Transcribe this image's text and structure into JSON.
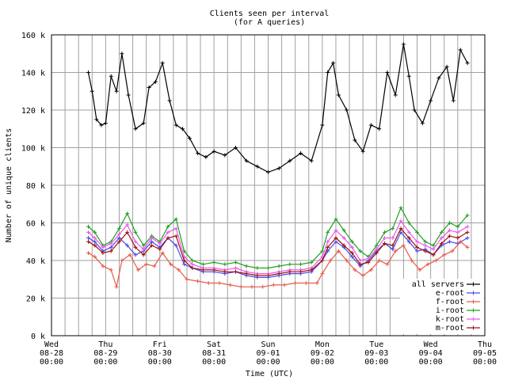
{
  "chart_data": {
    "type": "line",
    "title": "Clients seen per interval",
    "subtitle": "(for A queries)",
    "xlabel": "Time (UTC)",
    "ylabel": "Number of unique clients",
    "ylim": [
      0,
      160000
    ],
    "xlim": [
      "2024-08-28 00:00",
      "2024-09-05 00:00"
    ],
    "y_ticks": [
      "0 k",
      "20 k",
      "40 k",
      "60 k",
      "80 k",
      "100 k",
      "120 k",
      "140 k",
      "160 k"
    ],
    "x_ticks": [
      {
        "day": "Wed",
        "date": "08-28",
        "time": "00:00"
      },
      {
        "day": "Thu",
        "date": "08-29",
        "time": "00:00"
      },
      {
        "day": "Fri",
        "date": "08-30",
        "time": "00:00"
      },
      {
        "day": "Sat",
        "date": "08-31",
        "time": "00:00"
      },
      {
        "day": "Sun",
        "date": "09-01",
        "time": "00:00"
      },
      {
        "day": "Mon",
        "date": "09-02",
        "time": "00:00"
      },
      {
        "day": "Tue",
        "date": "09-03",
        "time": "00:00"
      },
      {
        "day": "Wed",
        "date": "09-04",
        "time": "00:00"
      },
      {
        "day": "Thu",
        "date": "09-05",
        "time": "00:00"
      }
    ],
    "grid": true,
    "legend_position": "bottom-right",
    "series": [
      {
        "name": "all servers",
        "color": "#000000",
        "x": [
          0.68,
          0.75,
          0.83,
          0.92,
          1.0,
          1.1,
          1.2,
          1.3,
          1.42,
          1.55,
          1.7,
          1.8,
          1.92,
          2.05,
          2.18,
          2.3,
          2.42,
          2.55,
          2.7,
          2.85,
          3.0,
          3.2,
          3.4,
          3.6,
          3.8,
          4.0,
          4.2,
          4.4,
          4.6,
          4.8,
          5.0,
          5.1,
          5.2,
          5.3,
          5.45,
          5.6,
          5.75,
          5.9,
          6.05,
          6.2,
          6.35,
          6.5,
          6.6,
          6.7,
          6.85,
          7.0,
          7.15,
          7.3,
          7.42,
          7.55,
          7.68
        ],
        "y": [
          140000,
          130000,
          115000,
          112000,
          113000,
          138000,
          130000,
          150000,
          128000,
          110000,
          113000,
          132000,
          135000,
          145000,
          125000,
          112000,
          110000,
          105000,
          97000,
          95000,
          98000,
          96000,
          100000,
          93000,
          90000,
          87000,
          89000,
          93000,
          97000,
          93000,
          112000,
          140000,
          145000,
          128000,
          120000,
          104000,
          98000,
          112000,
          110000,
          140000,
          128000,
          155000,
          138000,
          120000,
          113000,
          125000,
          137000,
          143000,
          125000,
          152000,
          145000
        ]
      },
      {
        "name": "e-root",
        "color": "#4a4ae8",
        "x": [
          0.68,
          0.8,
          0.95,
          1.1,
          1.25,
          1.4,
          1.55,
          1.7,
          1.85,
          2.0,
          2.15,
          2.3,
          2.45,
          2.6,
          2.8,
          3.0,
          3.2,
          3.4,
          3.6,
          3.8,
          4.0,
          4.2,
          4.4,
          4.6,
          4.8,
          5.0,
          5.1,
          5.25,
          5.4,
          5.55,
          5.7,
          5.85,
          6.0,
          6.15,
          6.3,
          6.45,
          6.6,
          6.75,
          6.9,
          7.05,
          7.2,
          7.35,
          7.5,
          7.68
        ],
        "y": [
          52000,
          50000,
          45000,
          47000,
          52000,
          48000,
          43000,
          45000,
          50000,
          47000,
          52000,
          48000,
          38000,
          36000,
          34000,
          34000,
          33000,
          34000,
          32000,
          31000,
          31000,
          32000,
          33000,
          33000,
          34000,
          40000,
          45000,
          50000,
          47000,
          42000,
          37000,
          40000,
          45000,
          49000,
          46000,
          55000,
          50000,
          45000,
          46000,
          43000,
          48000,
          50000,
          49000,
          52000
        ]
      },
      {
        "name": "f-root",
        "color": "#e85a4a",
        "x": [
          0.68,
          0.8,
          0.95,
          1.1,
          1.2,
          1.3,
          1.45,
          1.6,
          1.75,
          1.9,
          2.05,
          2.2,
          2.35,
          2.5,
          2.7,
          2.9,
          3.1,
          3.3,
          3.5,
          3.7,
          3.9,
          4.1,
          4.3,
          4.5,
          4.7,
          4.9,
          5.0,
          5.15,
          5.3,
          5.45,
          5.6,
          5.75,
          5.9,
          6.05,
          6.2,
          6.35,
          6.5,
          6.65,
          6.8,
          6.95,
          7.1,
          7.25,
          7.4,
          7.55,
          7.68
        ],
        "y": [
          44000,
          42000,
          37000,
          35000,
          26000,
          40000,
          43000,
          35000,
          38000,
          37000,
          44000,
          38000,
          35000,
          30000,
          29000,
          28000,
          28000,
          27000,
          26000,
          26000,
          26000,
          27000,
          27000,
          28000,
          28000,
          28000,
          33000,
          40000,
          45000,
          40000,
          35000,
          32000,
          35000,
          40000,
          38000,
          45000,
          48000,
          40000,
          35000,
          38000,
          40000,
          43000,
          45000,
          50000,
          47000
        ]
      },
      {
        "name": "i-root",
        "color": "#20a020",
        "x": [
          0.68,
          0.8,
          0.95,
          1.1,
          1.25,
          1.4,
          1.55,
          1.7,
          1.85,
          2.0,
          2.15,
          2.3,
          2.45,
          2.6,
          2.8,
          3.0,
          3.2,
          3.4,
          3.6,
          3.8,
          4.0,
          4.2,
          4.4,
          4.6,
          4.8,
          5.0,
          5.1,
          5.25,
          5.4,
          5.55,
          5.7,
          5.85,
          6.0,
          6.15,
          6.3,
          6.45,
          6.6,
          6.75,
          6.9,
          7.05,
          7.2,
          7.35,
          7.5,
          7.68
        ],
        "y": [
          58000,
          55000,
          48000,
          50000,
          57000,
          65000,
          55000,
          48000,
          53000,
          50000,
          58000,
          62000,
          45000,
          40000,
          38000,
          39000,
          38000,
          39000,
          37000,
          36000,
          36000,
          37000,
          38000,
          38000,
          39000,
          45000,
          55000,
          62000,
          56000,
          50000,
          45000,
          42000,
          48000,
          55000,
          57000,
          68000,
          60000,
          55000,
          50000,
          48000,
          55000,
          60000,
          58000,
          64000
        ]
      },
      {
        "name": "k-root",
        "color": "#e85ae8",
        "x": [
          0.68,
          0.8,
          0.95,
          1.1,
          1.25,
          1.4,
          1.55,
          1.7,
          1.85,
          2.0,
          2.15,
          2.3,
          2.45,
          2.6,
          2.8,
          3.0,
          3.2,
          3.4,
          3.6,
          3.8,
          4.0,
          4.2,
          4.4,
          4.6,
          4.8,
          5.0,
          5.1,
          5.25,
          5.4,
          5.55,
          5.7,
          5.85,
          6.0,
          6.15,
          6.3,
          6.45,
          6.6,
          6.75,
          6.9,
          7.05,
          7.2,
          7.35,
          7.5,
          7.68
        ],
        "y": [
          55000,
          52000,
          47000,
          49000,
          54000,
          59000,
          50000,
          46000,
          52000,
          49000,
          55000,
          57000,
          42000,
          38000,
          36000,
          36000,
          35000,
          36000,
          34000,
          33000,
          33000,
          34000,
          35000,
          35000,
          36000,
          42000,
          50000,
          56000,
          52000,
          47000,
          40000,
          41000,
          46000,
          52000,
          52000,
          61000,
          55000,
          50000,
          48000,
          46000,
          52000,
          56000,
          55000,
          58000
        ]
      },
      {
        "name": "m-root",
        "color": "#a01010",
        "x": [
          0.68,
          0.8,
          0.95,
          1.1,
          1.25,
          1.4,
          1.55,
          1.7,
          1.85,
          2.0,
          2.15,
          2.3,
          2.45,
          2.6,
          2.8,
          3.0,
          3.2,
          3.4,
          3.6,
          3.8,
          4.0,
          4.2,
          4.4,
          4.6,
          4.8,
          5.0,
          5.1,
          5.25,
          5.4,
          5.55,
          5.7,
          5.85,
          6.0,
          6.15,
          6.3,
          6.45,
          6.6,
          6.75,
          6.9,
          7.05,
          7.2,
          7.35,
          7.5,
          7.68
        ],
        "y": [
          50000,
          48000,
          44000,
          45000,
          50000,
          55000,
          47000,
          43000,
          48000,
          46000,
          52000,
          53000,
          40000,
          36000,
          35000,
          35000,
          34000,
          34000,
          33000,
          32000,
          32000,
          33000,
          34000,
          34000,
          35000,
          40000,
          47000,
          52000,
          48000,
          44000,
          38000,
          39000,
          44000,
          49000,
          48000,
          57000,
          52000,
          47000,
          45000,
          43000,
          49000,
          53000,
          52000,
          55000
        ]
      }
    ]
  }
}
